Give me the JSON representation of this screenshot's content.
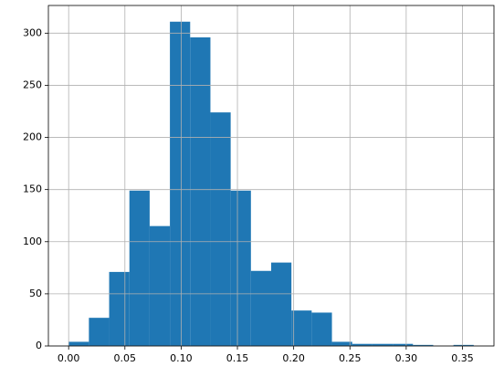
{
  "chart_data": {
    "type": "histogram",
    "bins": [
      0,
      0.018,
      0.036,
      0.054,
      0.072,
      0.09,
      0.108,
      0.126,
      0.144,
      0.162,
      0.18,
      0.198,
      0.216,
      0.234,
      0.252,
      0.27,
      0.288,
      0.306,
      0.324,
      0.342,
      0.36
    ],
    "values": [
      4,
      27,
      71,
      149,
      115,
      311,
      296,
      224,
      149,
      72,
      80,
      34,
      32,
      4,
      2,
      2,
      2,
      1,
      0,
      1
    ],
    "color": "#1f77b4",
    "xlim": [
      -0.018,
      0.378
    ],
    "xticks": [
      {
        "value": 0,
        "label": "0.00"
      },
      0.05,
      {
        "value": 0.1,
        "label": "0.10"
      },
      0.15,
      {
        "value": 0.2,
        "label": "0.20"
      },
      0.25,
      {
        "value": 0.3,
        "label": "0.30"
      },
      0.35
    ],
    "ylim": [
      0,
      326.55
    ],
    "yticks": [
      0,
      50,
      100,
      150,
      200,
      250,
      300
    ],
    "grid": true
  }
}
